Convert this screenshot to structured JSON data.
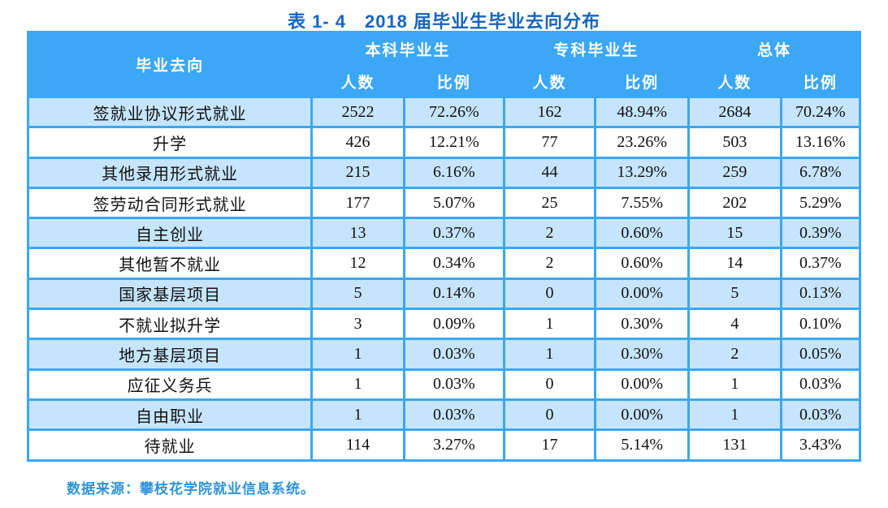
{
  "page": {
    "title": "表 1- 4　2018 届毕业生毕业去向分布",
    "source_note": "数据来源：攀枝花学院就业信息系统。"
  },
  "colors": {
    "header_bg": "#3BA7F5",
    "header_text": "#FFFFFF",
    "row_alt_bg": "#C6E5FC",
    "row_bg": "#FFFFFF",
    "cell_border": "#3BA7F5",
    "title_text": "#1565BF",
    "note_text": "#2E93D9",
    "body_text": "#111111"
  },
  "table": {
    "header": {
      "destination": "毕业去向",
      "groups": [
        {
          "label": "本科毕业生",
          "sub": [
            "人数",
            "比例"
          ]
        },
        {
          "label": "专科毕业生",
          "sub": [
            "人数",
            "比例"
          ]
        },
        {
          "label": "总体",
          "sub": [
            "人数",
            "比例"
          ]
        }
      ]
    },
    "rows": [
      {
        "destination": "签就业协议形式就业",
        "values": [
          "2522",
          "72.26%",
          "162",
          "48.94%",
          "2684",
          "70.24%"
        ]
      },
      {
        "destination": "升学",
        "values": [
          "426",
          "12.21%",
          "77",
          "23.26%",
          "503",
          "13.16%"
        ]
      },
      {
        "destination": "其他录用形式就业",
        "values": [
          "215",
          "6.16%",
          "44",
          "13.29%",
          "259",
          "6.78%"
        ]
      },
      {
        "destination": "签劳动合同形式就业",
        "values": [
          "177",
          "5.07%",
          "25",
          "7.55%",
          "202",
          "5.29%"
        ]
      },
      {
        "destination": "自主创业",
        "values": [
          "13",
          "0.37%",
          "2",
          "0.60%",
          "15",
          "0.39%"
        ]
      },
      {
        "destination": "其他暂不就业",
        "values": [
          "12",
          "0.34%",
          "2",
          "0.60%",
          "14",
          "0.37%"
        ]
      },
      {
        "destination": "国家基层项目",
        "values": [
          "5",
          "0.14%",
          "0",
          "0.00%",
          "5",
          "0.13%"
        ]
      },
      {
        "destination": "不就业拟升学",
        "values": [
          "3",
          "0.09%",
          "1",
          "0.30%",
          "4",
          "0.10%"
        ]
      },
      {
        "destination": "地方基层项目",
        "values": [
          "1",
          "0.03%",
          "1",
          "0.30%",
          "2",
          "0.05%"
        ]
      },
      {
        "destination": "应征义务兵",
        "values": [
          "1",
          "0.03%",
          "0",
          "0.00%",
          "1",
          "0.03%"
        ]
      },
      {
        "destination": "自由职业",
        "values": [
          "1",
          "0.03%",
          "0",
          "0.00%",
          "1",
          "0.03%"
        ]
      },
      {
        "destination": "待就业",
        "values": [
          "114",
          "3.27%",
          "17",
          "5.14%",
          "131",
          "3.43%"
        ]
      }
    ]
  }
}
